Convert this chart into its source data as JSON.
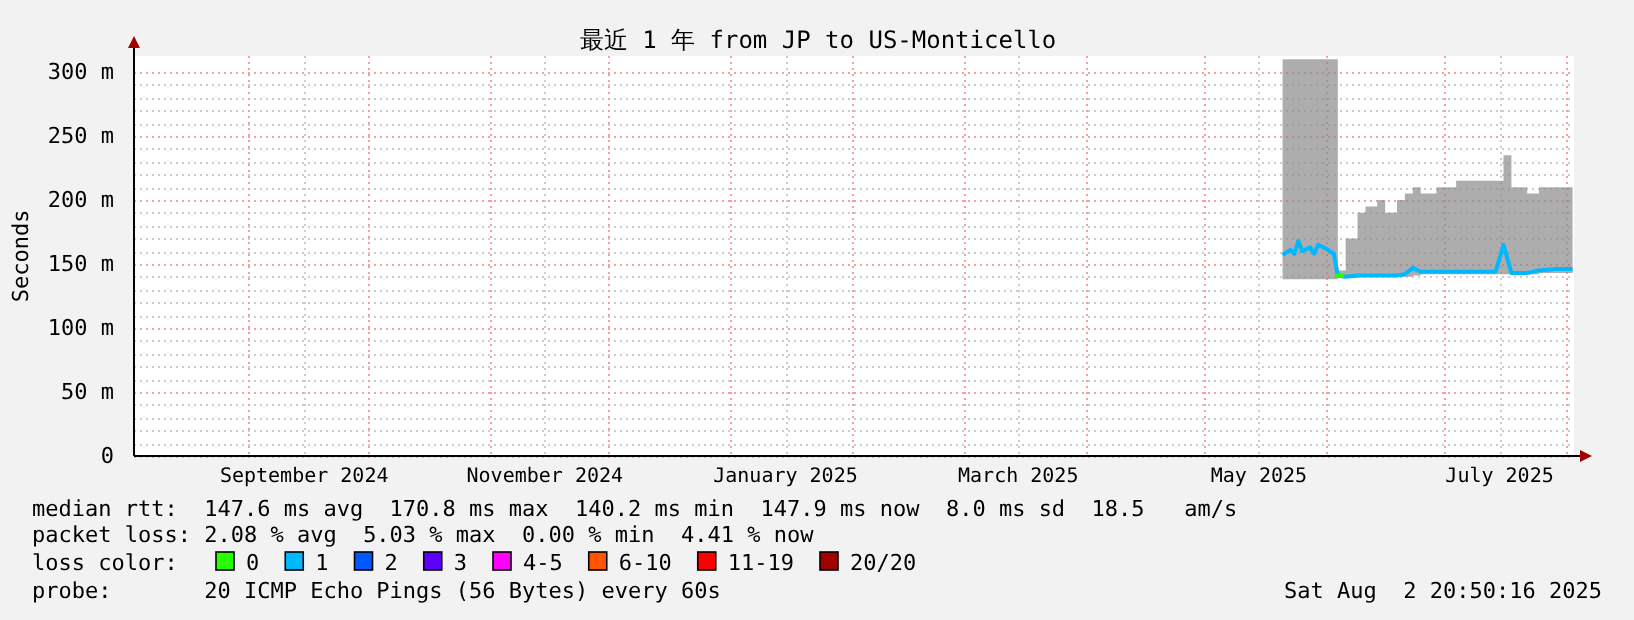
{
  "chart_data": {
    "type": "line",
    "title": "最近 1 年 from JP to US-Monticello",
    "ylabel": "Seconds",
    "xlim": [
      "2024-08-02T20:50",
      "2025-08-02T20:50"
    ],
    "xticks": [
      {
        "value": "2024-09-01",
        "label": null
      },
      {
        "value": "2024-09-15",
        "label": "September 2024"
      },
      {
        "value": "2024-10-01",
        "label": null
      },
      {
        "value": "2024-11-01",
        "label": null
      },
      {
        "value": "2024-11-15",
        "label": "November 2024"
      },
      {
        "value": "2024-12-01",
        "label": null
      },
      {
        "value": "2025-01-01",
        "label": null
      },
      {
        "value": "2025-01-15",
        "label": "January 2025"
      },
      {
        "value": "2025-02-01",
        "label": null
      },
      {
        "value": "2025-03-01",
        "label": null
      },
      {
        "value": "2025-03-15",
        "label": "March 2025"
      },
      {
        "value": "2025-04-01",
        "label": null
      },
      {
        "value": "2025-05-01",
        "label": null
      },
      {
        "value": "2025-05-15",
        "label": "May 2025"
      },
      {
        "value": "2025-06-01",
        "label": null
      },
      {
        "value": "2025-07-01",
        "label": null
      },
      {
        "value": "2025-07-15",
        "label": "July 2025"
      },
      {
        "value": "2025-08-01",
        "label": null
      }
    ],
    "ylim": [
      0,
      312.5
    ],
    "yticks": [
      0,
      {
        "value": 10,
        "label": null
      },
      {
        "value": 20,
        "label": null
      },
      {
        "value": 30,
        "label": null
      },
      {
        "value": 40,
        "label": null
      },
      {
        "value": 50,
        "label": "50 m"
      },
      {
        "value": 60,
        "label": null
      },
      {
        "value": 70,
        "label": null
      },
      {
        "value": 80,
        "label": null
      },
      {
        "value": 90,
        "label": null
      },
      {
        "value": 100,
        "label": "100 m"
      },
      {
        "value": 110,
        "label": null
      },
      {
        "value": 120,
        "label": null
      },
      {
        "value": 130,
        "label": null
      },
      {
        "value": 140,
        "label": null
      },
      {
        "value": 150,
        "label": "150 m"
      },
      {
        "value": 160,
        "label": null
      },
      {
        "value": 170,
        "label": null
      },
      {
        "value": 180,
        "label": null
      },
      {
        "value": 190,
        "label": null
      },
      {
        "value": 200,
        "label": "200 m"
      },
      {
        "value": 210,
        "label": null
      },
      {
        "value": 220,
        "label": null
      },
      {
        "value": 230,
        "label": null
      },
      {
        "value": 240,
        "label": null
      },
      {
        "value": 250,
        "label": "250 m"
      },
      {
        "value": 260,
        "label": null
      },
      {
        "value": 270,
        "label": null
      },
      {
        "value": 280,
        "label": null
      },
      {
        "value": 290,
        "label": null
      },
      {
        "value": 300,
        "label": "300 m"
      }
    ],
    "grid": true,
    "legend": "bottom",
    "legend_title": "loss color:",
    "series": [
      {
        "name": "0",
        "color": "#26ff00",
        "x": [
          "2025-06-03T12:00",
          "2025-06-05T12:00"
        ],
        "values": [
          141,
          141
        ]
      },
      {
        "name": "1",
        "color": "#00b8ff",
        "x": [
          "2025-05-21",
          "2025-05-23",
          "2025-05-24",
          "2025-05-25",
          "2025-05-26",
          "2025-05-28",
          "2025-05-29",
          "2025-05-30",
          "2025-06-01",
          "2025-06-02",
          "2025-06-03",
          "2025-06-04",
          "2025-06-06",
          "2025-06-09",
          "2025-06-11",
          "2025-06-14",
          "2025-06-16",
          "2025-06-19",
          "2025-06-21",
          "2025-06-23",
          "2025-06-25",
          "2025-06-29",
          "2025-07-04",
          "2025-07-09",
          "2025-07-14",
          "2025-07-16",
          "2025-07-18",
          "2025-07-22",
          "2025-07-25",
          "2025-07-29",
          "2025-08-02T12:00"
        ],
        "values": [
          157,
          161,
          158,
          168,
          160,
          163,
          158,
          165,
          162,
          160,
          158,
          141,
          140,
          141,
          141,
          141,
          141,
          141,
          142,
          147,
          144,
          144,
          144,
          144,
          144,
          165,
          143,
          143,
          145,
          146,
          146
        ],
        "lower": [
          138,
          138,
          138,
          138,
          138,
          138,
          138,
          138,
          138,
          138,
          138,
          139,
          139,
          140,
          140,
          140,
          140,
          140,
          140,
          141,
          142,
          142,
          142,
          142,
          142,
          142,
          142,
          142,
          143,
          143,
          143
        ],
        "upper": [
          310,
          310,
          310,
          310,
          310,
          310,
          310,
          310,
          310,
          310,
          310,
          145,
          170,
          190,
          195,
          200,
          190,
          200,
          205,
          210,
          205,
          210,
          215,
          215,
          215,
          235,
          210,
          205,
          210,
          210,
          205
        ]
      },
      {
        "name": "2",
        "color": "#0059ff"
      },
      {
        "name": "3",
        "color": "#5e00ff"
      },
      {
        "name": "4-5",
        "color": "#ff00ff"
      },
      {
        "name": "6-10",
        "color": "#ff5500"
      },
      {
        "name": "11-19",
        "color": "#ff0000"
      },
      {
        "name": "20/20",
        "color": "#a10000"
      }
    ],
    "annotations": [
      "median rtt:  147.6 ms avg  170.8 ms max  140.2 ms min  147.9 ms now  8.0 ms sd  18.5   am/s",
      "packet loss: 2.08 % avg  5.03 % max  0.00 % min  4.41 % now",
      "probe:       20 ICMP Echo Pings (56 Bytes) every 60s",
      "Sat Aug  2 20:50:16 2025"
    ]
  }
}
